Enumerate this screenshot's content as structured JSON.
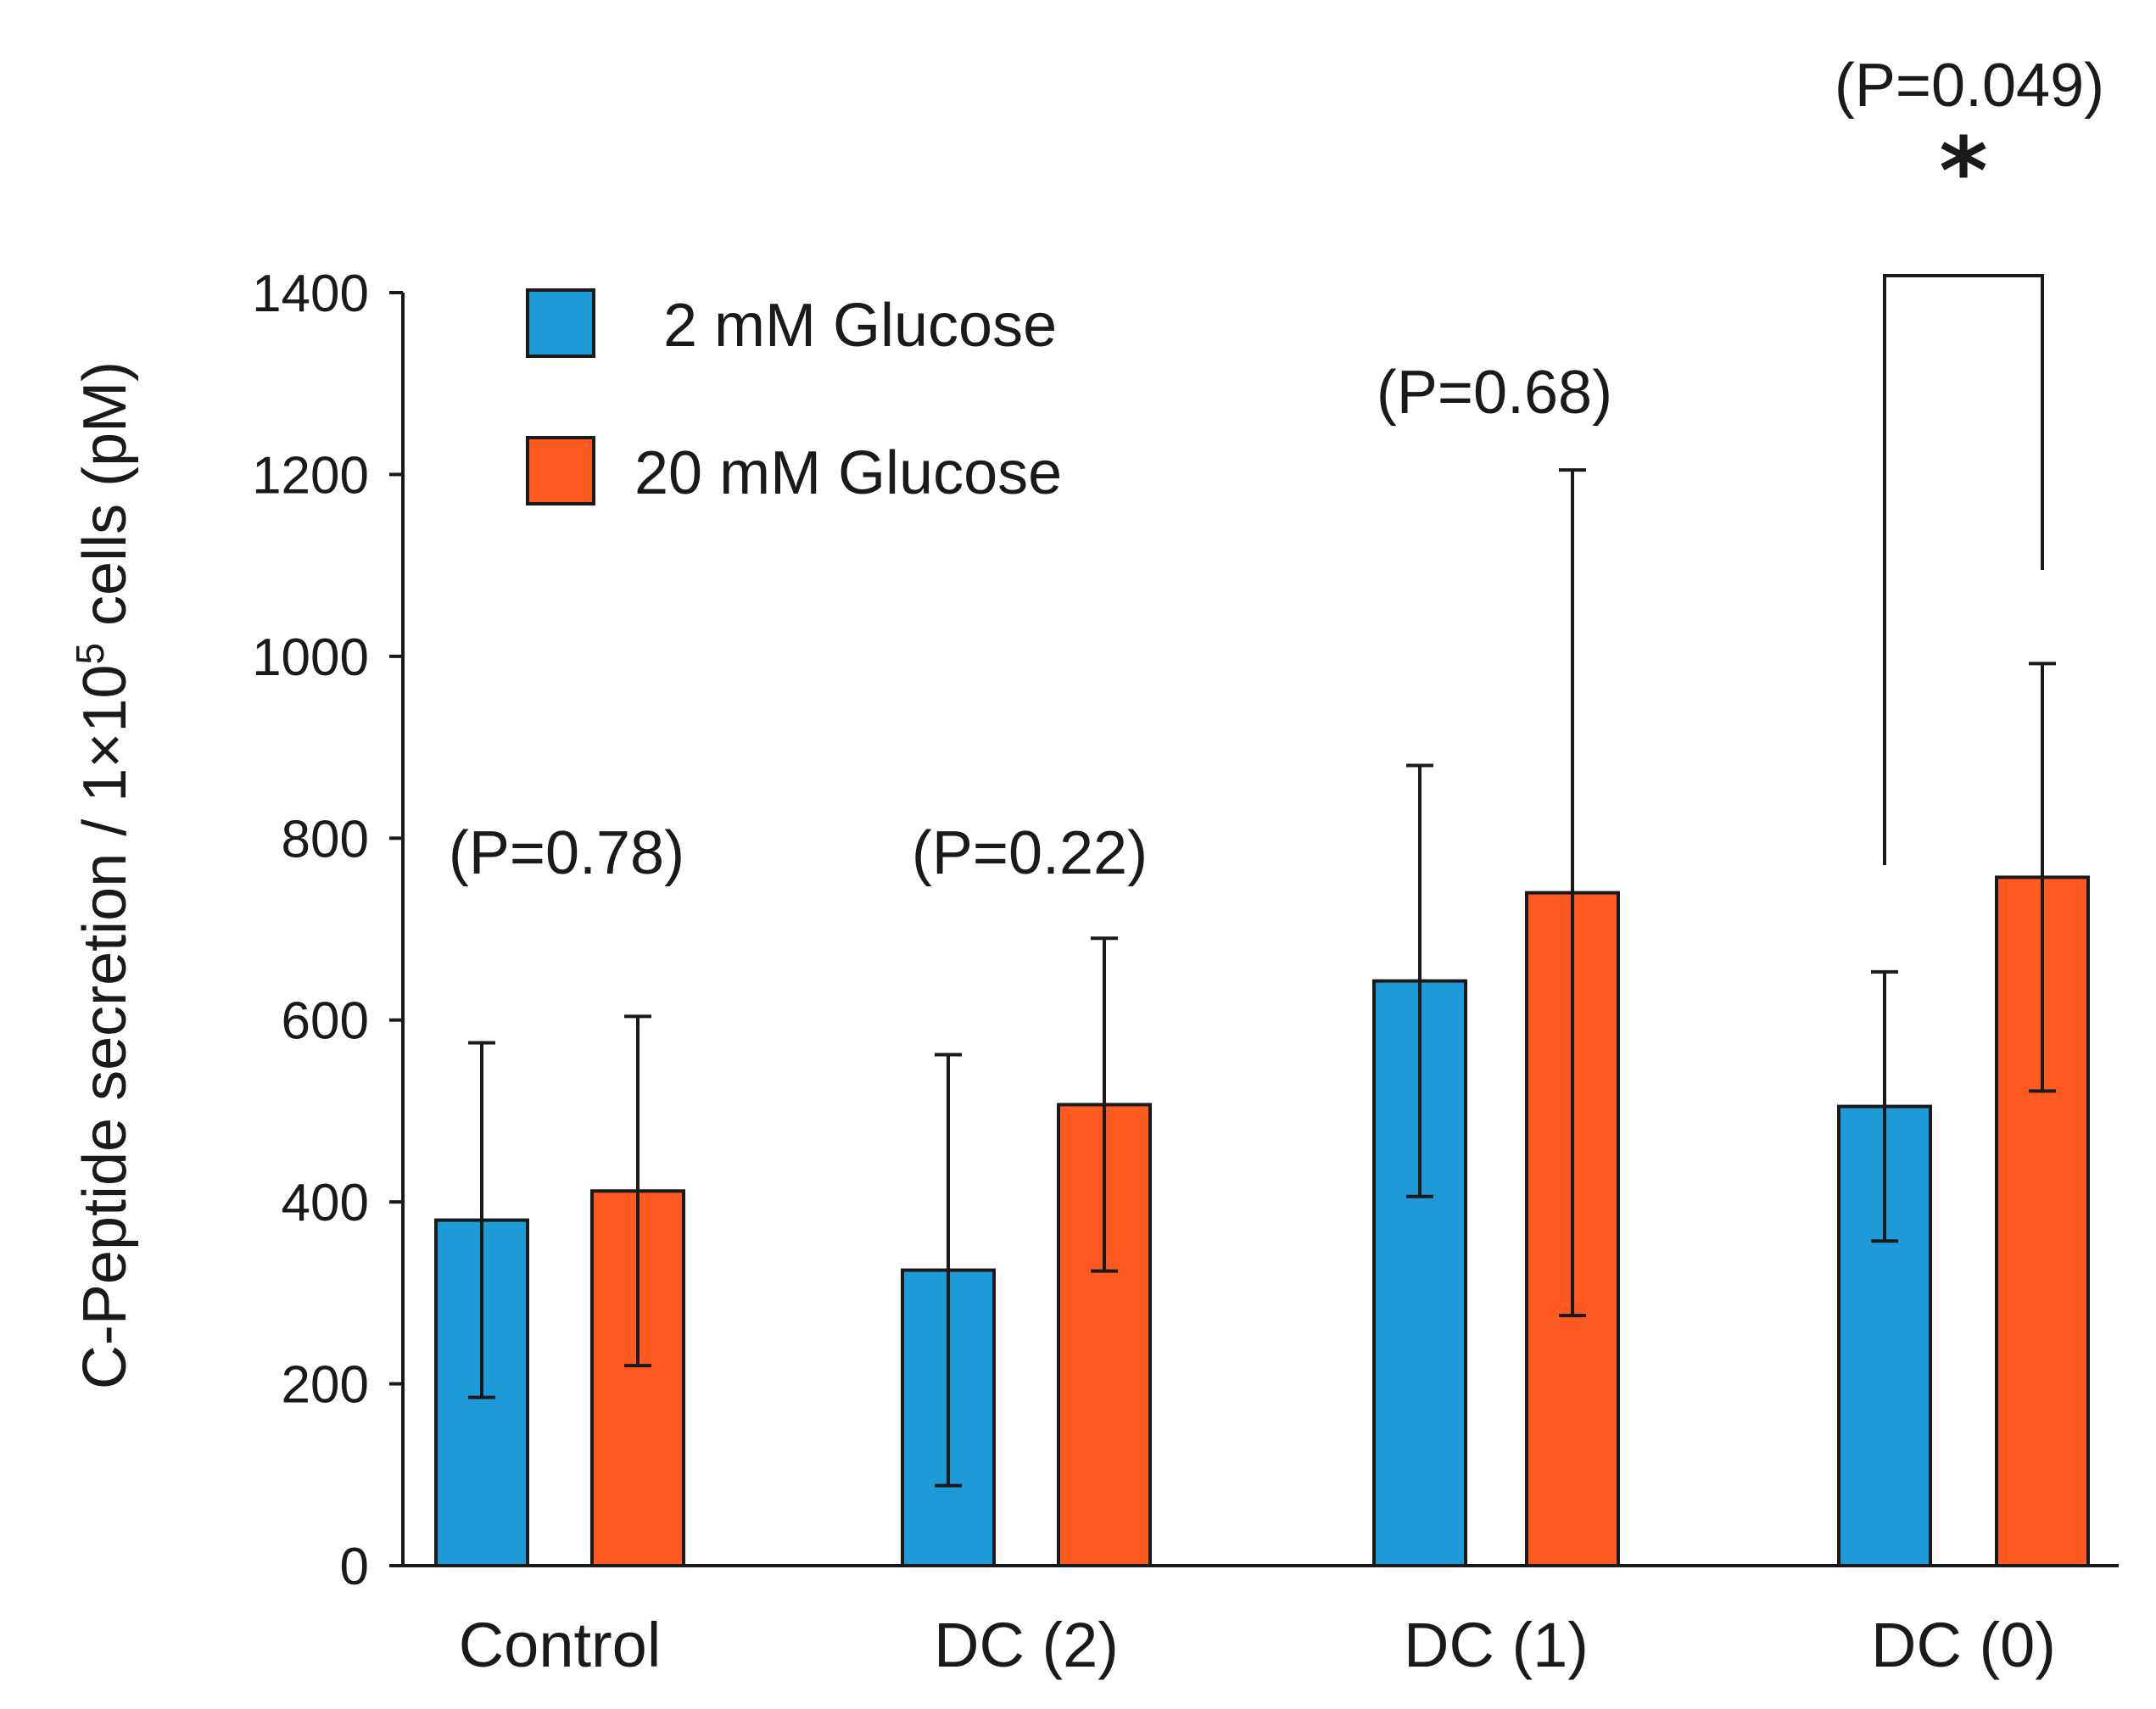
{
  "chart_data": {
    "type": "bar",
    "title": "",
    "xlabel": "",
    "ylabel_main": "C-Peptide secretion / 1×10",
    "ylabel_sup": "5",
    "ylabel_tail": " cells (pM)",
    "ylim": [
      0,
      1400
    ],
    "yticks": [
      0,
      200,
      400,
      600,
      800,
      1000,
      1200,
      1400
    ],
    "categories": [
      "Control",
      "DC (2)",
      "DC (1)",
      "DC (0)"
    ],
    "series": [
      {
        "name": "2 mM Glucose",
        "color": "#1e9bd7",
        "values": [
          380,
          325,
          643,
          505
        ],
        "errors": [
          195,
          237,
          237,
          148
        ]
      },
      {
        "name": "20 mM Glucose",
        "color": "#ff5a22",
        "values": [
          412,
          507,
          740,
          757
        ],
        "errors": [
          192,
          183,
          465,
          235
        ]
      }
    ],
    "annotations": [
      {
        "category": "Control",
        "text": "(P=0.78)",
        "significant": false
      },
      {
        "category": "DC (2)",
        "text": "(P=0.22)",
        "significant": false
      },
      {
        "category": "DC (1)",
        "text": "(P=0.68)",
        "significant": false
      },
      {
        "category": "DC (0)",
        "text": "(P=0.049)",
        "significant": true,
        "marker": "*"
      }
    ],
    "legend_position": "top-left",
    "grid": false
  }
}
